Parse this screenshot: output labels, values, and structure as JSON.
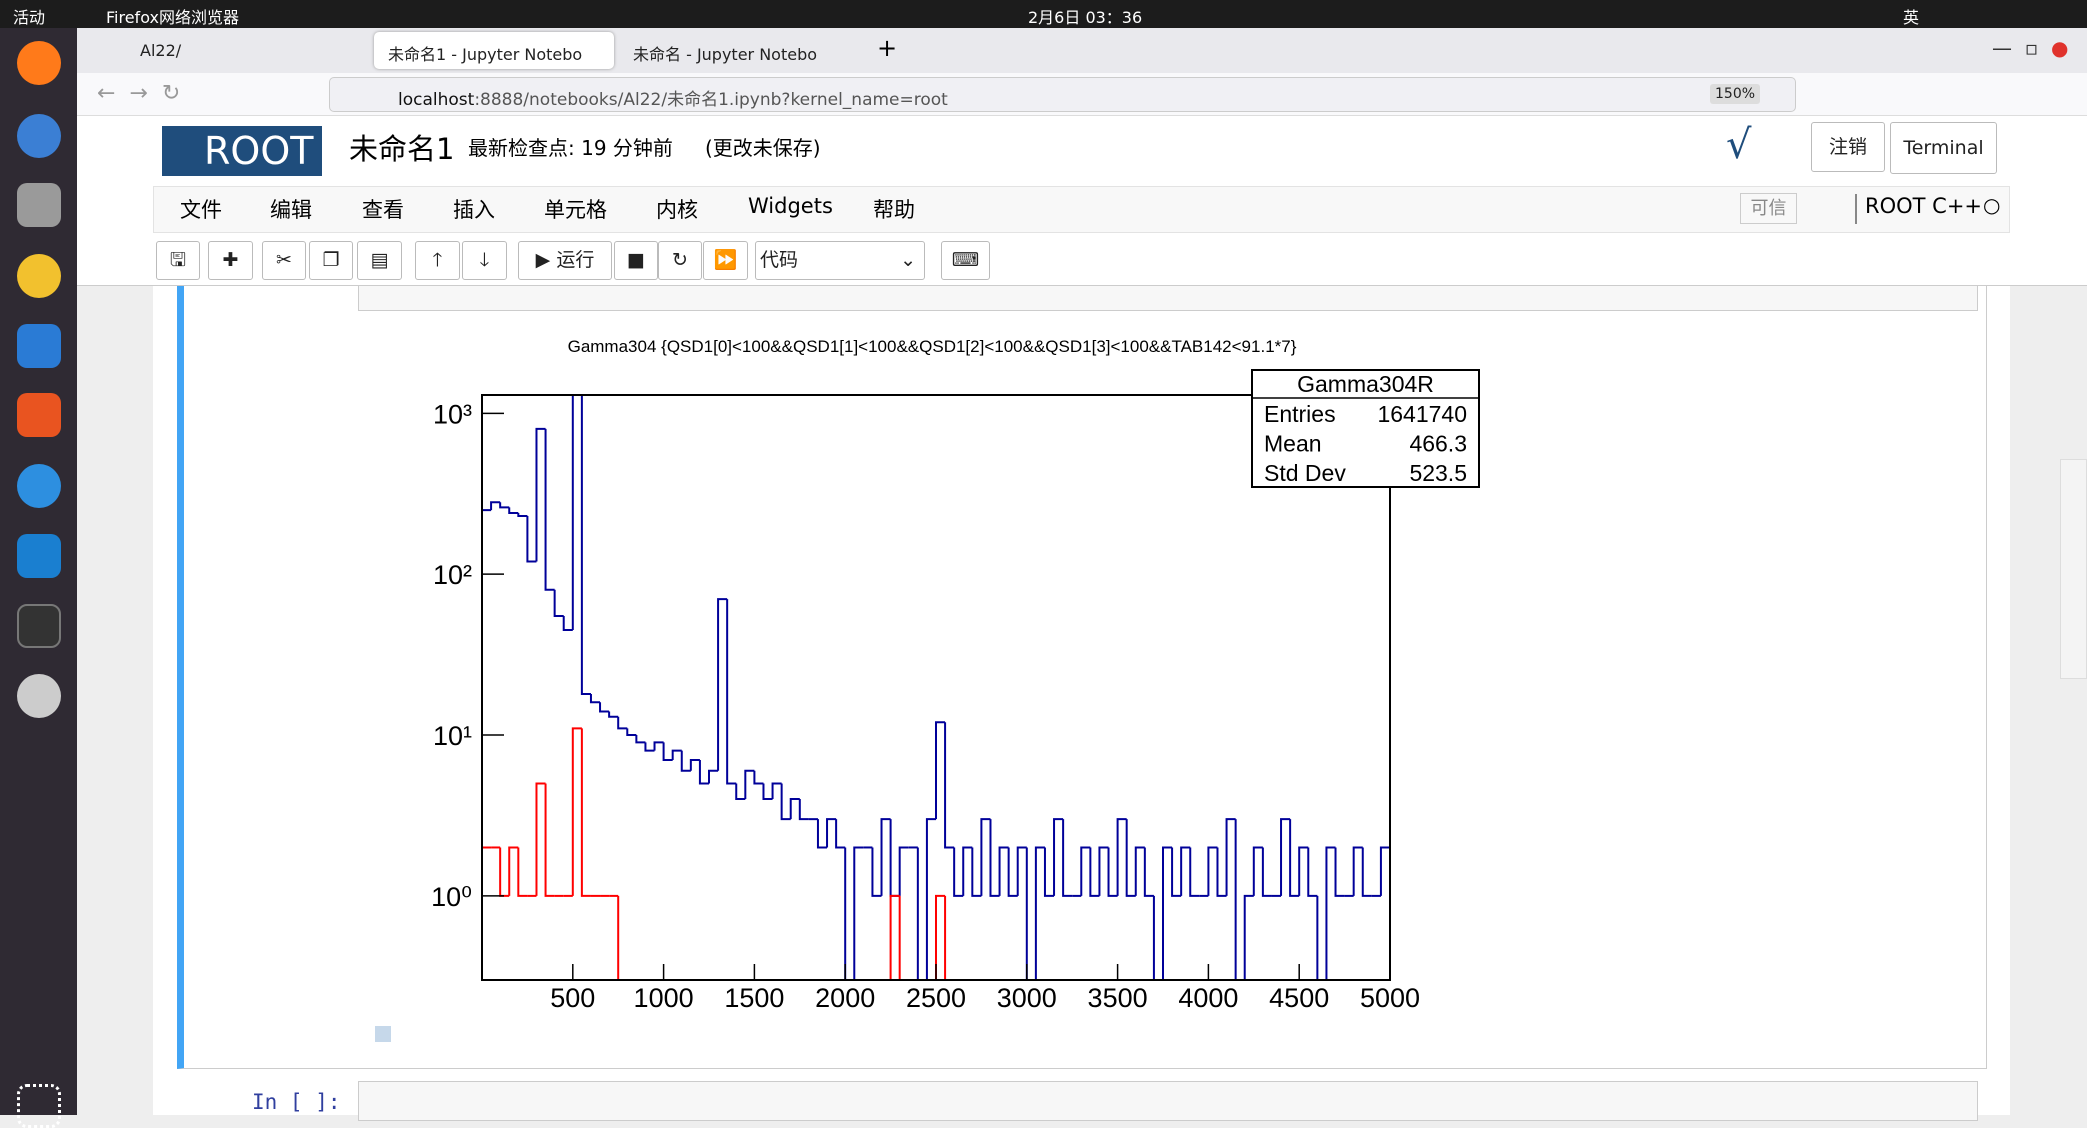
{
  "system_bar": {
    "activities": "活动",
    "app": "Firefox网络浏览器",
    "clock": "2月6日 03：36",
    "input_method": "英"
  },
  "browser": {
    "tabs": [
      "Al22/",
      "未命名1 - Jupyter Notebo",
      "未命名 - Jupyter Notebo"
    ],
    "url_host": "localhost",
    "url_path": ":8888/notebooks/Al22/未命名1.ipynb?kernel_name=root",
    "zoom": "150%"
  },
  "notebook": {
    "logo": "ROOT",
    "name": "未命名1",
    "checkpoint": "最新检查点: 19 分钟前",
    "unsaved": "(更改未保存)",
    "logout": "注销",
    "terminal": "Terminal",
    "menu": [
      "文件",
      "编辑",
      "查看",
      "插入",
      "单元格",
      "内核",
      "Widgets",
      "帮助"
    ],
    "trusted": "可信",
    "kernel": "ROOT C++",
    "run": "运行",
    "cell_type": "代码",
    "prompt": "In [ ]:"
  },
  "chart_data": {
    "type": "histogram",
    "title": "Gamma304 {QSD1[0]<100&&QSD1[1]<100&&QSD1[2]<100&&QSD1[3]<100&&TAB142<91.1*7}",
    "log_y": true,
    "bins": [
      0,
      50,
      100,
      150,
      200,
      250,
      300,
      350,
      400,
      450,
      500,
      550,
      600,
      650,
      700,
      750,
      800,
      850,
      900,
      950,
      1000,
      1050,
      1100,
      1150,
      1200,
      1250,
      1300,
      1350,
      1400,
      1450,
      1500,
      1550,
      1600,
      1650,
      1700,
      1750,
      1800,
      1850,
      1900,
      1950,
      2000,
      2050,
      2100,
      2150,
      2200,
      2250,
      2300,
      2350,
      2400,
      2450,
      2500,
      2550,
      2600,
      2650,
      2700,
      2750,
      2800,
      2850,
      2900,
      2950,
      3000,
      3050,
      3100,
      3150,
      3200,
      3250,
      3300,
      3350,
      3400,
      3450,
      3500,
      3550,
      3600,
      3650,
      3700,
      3750,
      3800,
      3850,
      3900,
      3950,
      4000,
      4050,
      4100,
      4150,
      4200,
      4250,
      4300,
      4350,
      4400,
      4450,
      4500,
      4550,
      4600,
      4650,
      4700,
      4750,
      4800,
      4850,
      4900,
      4950,
      5000
    ],
    "series": [
      {
        "color": "#000099",
        "values": [
          250,
          280,
          260,
          240,
          230,
          120,
          800,
          80,
          55,
          45,
          1300,
          18,
          16,
          14,
          13,
          11,
          10,
          9,
          8,
          9,
          7,
          8,
          6,
          7,
          5,
          6,
          70,
          5,
          4,
          6,
          5,
          4,
          5,
          3,
          4,
          3,
          3,
          2,
          3,
          2,
          0,
          2,
          2,
          1,
          3,
          1,
          2,
          2,
          0,
          3,
          12,
          2,
          1,
          2,
          1,
          3,
          1,
          2,
          1,
          2,
          0,
          2,
          1,
          3,
          1,
          1,
          2,
          1,
          2,
          1,
          3,
          1,
          2,
          1,
          0,
          2,
          1,
          2,
          1,
          1,
          2,
          1,
          3,
          0,
          1,
          2,
          1,
          1,
          3,
          1,
          2,
          1,
          0,
          2,
          1,
          1,
          2,
          1,
          1,
          2
        ]
      },
      {
        "color": "#ff0000",
        "values": [
          2,
          2,
          1,
          2,
          1,
          1,
          5,
          1,
          1,
          1,
          11,
          1,
          1,
          1,
          1,
          0,
          0,
          0,
          0,
          0,
          0,
          0,
          0,
          0,
          0,
          0,
          0,
          0,
          0,
          0,
          0,
          0,
          0,
          0,
          0,
          0,
          0,
          0,
          0,
          0,
          0,
          0,
          0,
          0,
          0,
          1,
          0,
          0,
          0,
          0,
          1,
          0,
          0,
          0,
          0,
          0,
          0,
          0,
          0,
          0,
          0,
          0,
          0,
          0,
          0,
          0,
          0,
          0,
          0,
          0,
          0,
          0,
          0,
          0,
          0,
          0,
          0,
          0,
          0,
          0,
          0,
          0,
          0,
          0,
          0,
          0,
          0,
          0,
          0,
          0,
          0,
          0,
          0,
          0,
          0,
          0,
          0,
          0,
          0,
          0
        ]
      }
    ],
    "xlim": [
      0,
      5000
    ],
    "xticks": [
      500,
      1000,
      1500,
      2000,
      2500,
      3000,
      3500,
      4000,
      4500,
      5000
    ],
    "ylim": [
      0.3,
      1300
    ],
    "yticks": [
      {
        "value": 1,
        "label": "10⁰"
      },
      {
        "value": 10,
        "label": "10¹"
      },
      {
        "value": 100,
        "label": "10²"
      },
      {
        "value": 1000,
        "label": "10³"
      }
    ],
    "stats": {
      "title": "Gamma304R",
      "rows": [
        {
          "label": "Entries",
          "value": 1641740
        },
        {
          "label": "Mean",
          "value": 466.3
        },
        {
          "label": "Std Dev",
          "value": 523.5
        }
      ]
    }
  }
}
